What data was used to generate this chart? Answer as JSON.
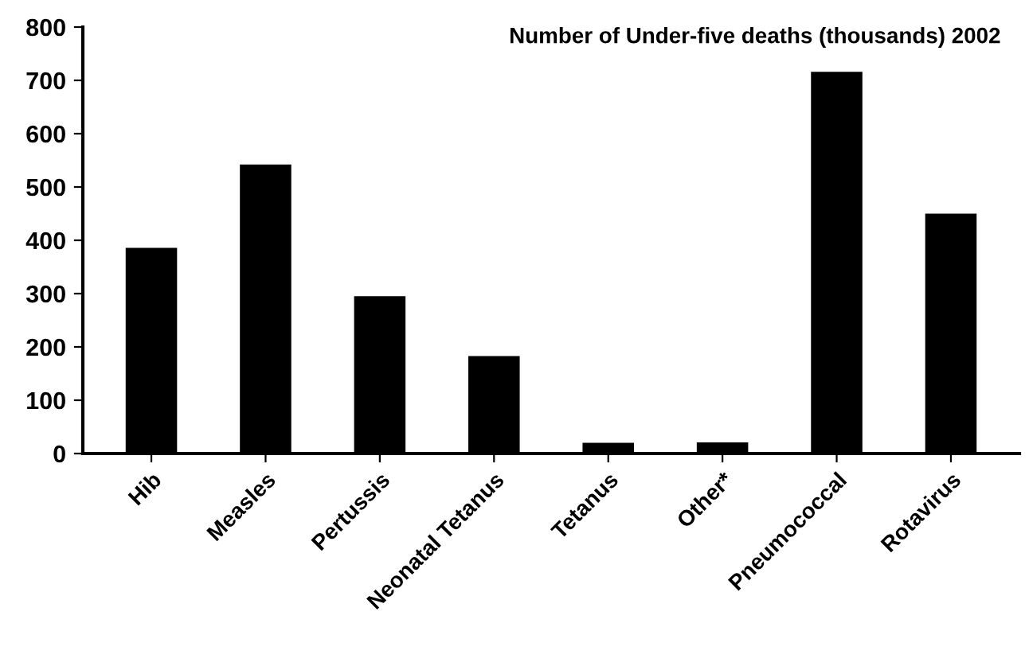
{
  "chart_data": {
    "type": "bar",
    "title": "Number of Under-five deaths (thousands) 2002",
    "categories": [
      "Hib",
      "Measles",
      "Pertussis",
      "Neonatal Tetanus",
      "Tetanus",
      "Other*",
      "Pneumococcal",
      "Rotavirus"
    ],
    "values": [
      386,
      542,
      295,
      183,
      20,
      21,
      716,
      450
    ],
    "color": "#000000",
    "ylim": [
      0,
      800
    ],
    "yticks": [
      0,
      100,
      200,
      300,
      400,
      500,
      600,
      700,
      800
    ],
    "grid": false
  }
}
